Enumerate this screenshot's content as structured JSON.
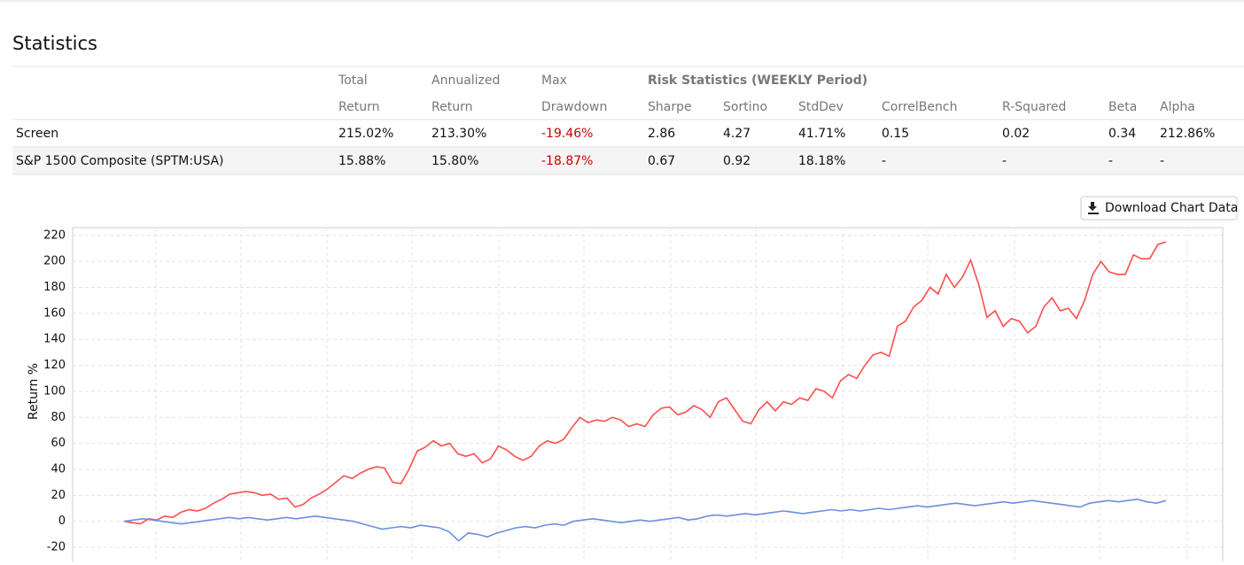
{
  "header": {
    "title": "Statistics"
  },
  "table": {
    "group": "Risk Statistics (WEEKLY Period)",
    "columns": [
      {
        "top": "Total",
        "label": "Return"
      },
      {
        "top": "Annualized",
        "label": "Return"
      },
      {
        "top": "Max",
        "label": "Drawdown"
      },
      {
        "label": "Sharpe"
      },
      {
        "label": "Sortino"
      },
      {
        "label": "StdDev"
      },
      {
        "label": "CorrelBench"
      },
      {
        "label": "R-Squared"
      },
      {
        "label": "Beta"
      },
      {
        "label": "Alpha"
      }
    ],
    "rows": [
      [
        "Screen",
        "215.02%",
        "213.30%",
        "-19.46%",
        "2.86",
        "4.27",
        "41.71%",
        "0.15",
        "0.02",
        "0.34",
        "212.86%"
      ],
      [
        "S&P 1500 Composite (SPTM:USA)",
        "15.88%",
        "15.80%",
        "-18.87%",
        "0.67",
        "0.92",
        "18.18%",
        "-",
        "-",
        "-",
        "-"
      ]
    ]
  },
  "button": {
    "label": "Download Chart Data"
  },
  "chart_data": {
    "type": "line",
    "ylabel": "Return %",
    "ylim": [
      -29.5,
      226
    ],
    "yticks": [
      -20,
      0,
      20,
      40,
      60,
      80,
      100,
      120,
      140,
      160,
      180,
      200,
      220
    ],
    "grid": true,
    "series": [
      {
        "color": "#ff4d4d",
        "values": [
          0,
          -1,
          -2,
          2,
          1,
          4,
          3,
          7,
          9,
          8,
          10,
          14,
          17,
          21,
          22,
          23,
          22,
          20,
          21,
          17,
          18,
          11,
          13,
          18,
          21,
          25,
          30,
          35,
          33,
          37,
          40,
          42,
          41,
          30,
          29,
          40,
          54,
          57,
          62,
          58,
          60,
          52,
          50,
          52,
          45,
          48,
          58,
          55,
          50,
          47,
          50,
          58,
          62,
          60,
          63,
          72,
          80,
          76,
          78,
          77,
          80,
          78,
          73,
          75,
          73,
          82,
          87,
          88,
          82,
          84,
          89,
          86,
          80,
          92,
          95,
          86,
          77,
          75,
          86,
          92,
          85,
          92,
          90,
          95,
          93,
          102,
          100,
          95,
          108,
          113,
          110,
          120,
          128,
          130,
          127,
          150,
          154,
          165,
          170,
          180,
          175,
          190,
          180,
          188,
          201,
          182,
          157,
          162,
          150,
          156,
          154,
          145,
          150,
          165,
          172,
          162,
          164,
          156,
          170,
          190,
          200,
          192,
          190,
          190,
          205,
          202,
          202,
          213,
          215
        ]
      },
      {
        "color": "#6b8fe0",
        "values": [
          0,
          1,
          2,
          1,
          0,
          -1,
          -2,
          -1,
          0,
          1,
          2,
          3,
          2,
          3,
          2,
          1,
          2,
          3,
          2,
          3,
          4,
          3,
          2,
          1,
          0,
          -2,
          -4,
          -6,
          -5,
          -4,
          -5,
          -3,
          -4,
          -5,
          -8,
          -15,
          -9,
          -10,
          -12,
          -9,
          -7,
          -5,
          -4,
          -5,
          -3,
          -2,
          -3,
          0,
          1,
          2,
          1,
          0,
          -1,
          0,
          1,
          0,
          1,
          2,
          3,
          1,
          2,
          4,
          5,
          4,
          5,
          6,
          5,
          6,
          7,
          8,
          7,
          6,
          7,
          8,
          9,
          8,
          9,
          8,
          9,
          10,
          9,
          10,
          11,
          12,
          11,
          12,
          13,
          14,
          13,
          12,
          13,
          14,
          15,
          14,
          15,
          16,
          15,
          14,
          13,
          12,
          11,
          14,
          15,
          16,
          15,
          16,
          17,
          15,
          14,
          16
        ]
      }
    ]
  }
}
